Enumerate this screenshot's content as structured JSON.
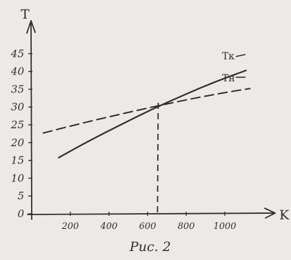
{
  "chart_data": {
    "type": "line",
    "xlabel": "K",
    "ylabel": "T",
    "caption": "Рис. 2",
    "xlim": [
      0,
      1200
    ],
    "ylim": [
      0,
      50
    ],
    "x_ticks": [
      200,
      400,
      600,
      800,
      1000
    ],
    "x_tick_labels": [
      "200",
      "400",
      "600",
      "800",
      "1000"
    ],
    "y_ticks": [
      0,
      5,
      10,
      15,
      20,
      25,
      30,
      35,
      40,
      45
    ],
    "y_tick_labels": [
      "0",
      "5",
      "10",
      "15",
      "20",
      "25",
      "30",
      "35",
      "40",
      "45"
    ],
    "grid": false,
    "series": [
      {
        "name": "Тк",
        "style": "solid",
        "x": [
          140,
          300,
          460,
          620,
          780,
          940,
          1110
        ],
        "y": [
          15.8,
          20.6,
          25.0,
          29.3,
          33.2,
          36.9,
          40.3
        ]
      },
      {
        "name": "Тн",
        "style": "dashed",
        "x": [
          60,
          240,
          420,
          600,
          780,
          960,
          1130
        ],
        "y": [
          22.7,
          25.2,
          27.5,
          29.7,
          31.8,
          33.7,
          35.2
        ]
      }
    ],
    "marker_line": {
      "x": 655,
      "from_y": 0,
      "to_y": 31.2,
      "style": "dashed"
    },
    "colors": {
      "ink": "#2e2e2e",
      "paper": "#eceae6"
    }
  }
}
